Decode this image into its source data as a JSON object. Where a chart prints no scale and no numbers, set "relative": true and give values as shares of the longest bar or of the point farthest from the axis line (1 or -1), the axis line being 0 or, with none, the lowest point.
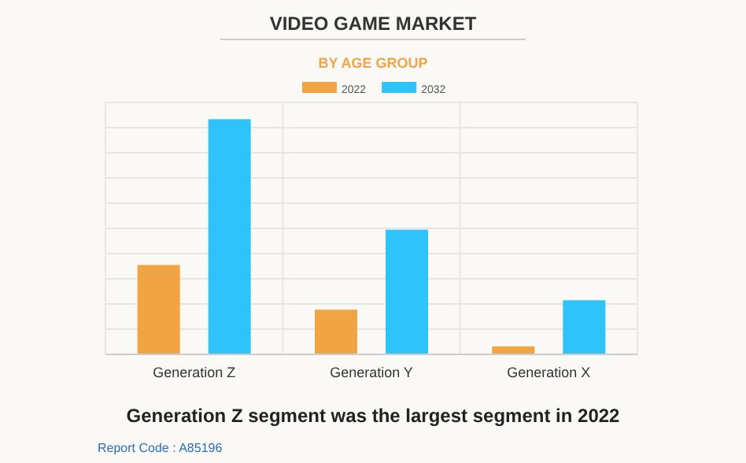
{
  "chart_data": {
    "type": "bar",
    "title": "VIDEO GAME MARKET",
    "subtitle": "BY AGE GROUP",
    "categories": [
      "Generation Z",
      "Generation Y",
      "Generation X"
    ],
    "series": [
      {
        "name": "2022",
        "color": "#f2a444",
        "values": [
          0.38,
          0.19,
          0.034
        ]
      },
      {
        "name": "2032",
        "color": "#2ec4fb",
        "values": [
          1,
          0.53,
          0.23
        ]
      }
    ],
    "relative": true,
    "grid": true,
    "legend": "top",
    "annotations": [
      "Generation Z segment was the largest segment in 2022",
      "Report Code : A85196"
    ]
  }
}
